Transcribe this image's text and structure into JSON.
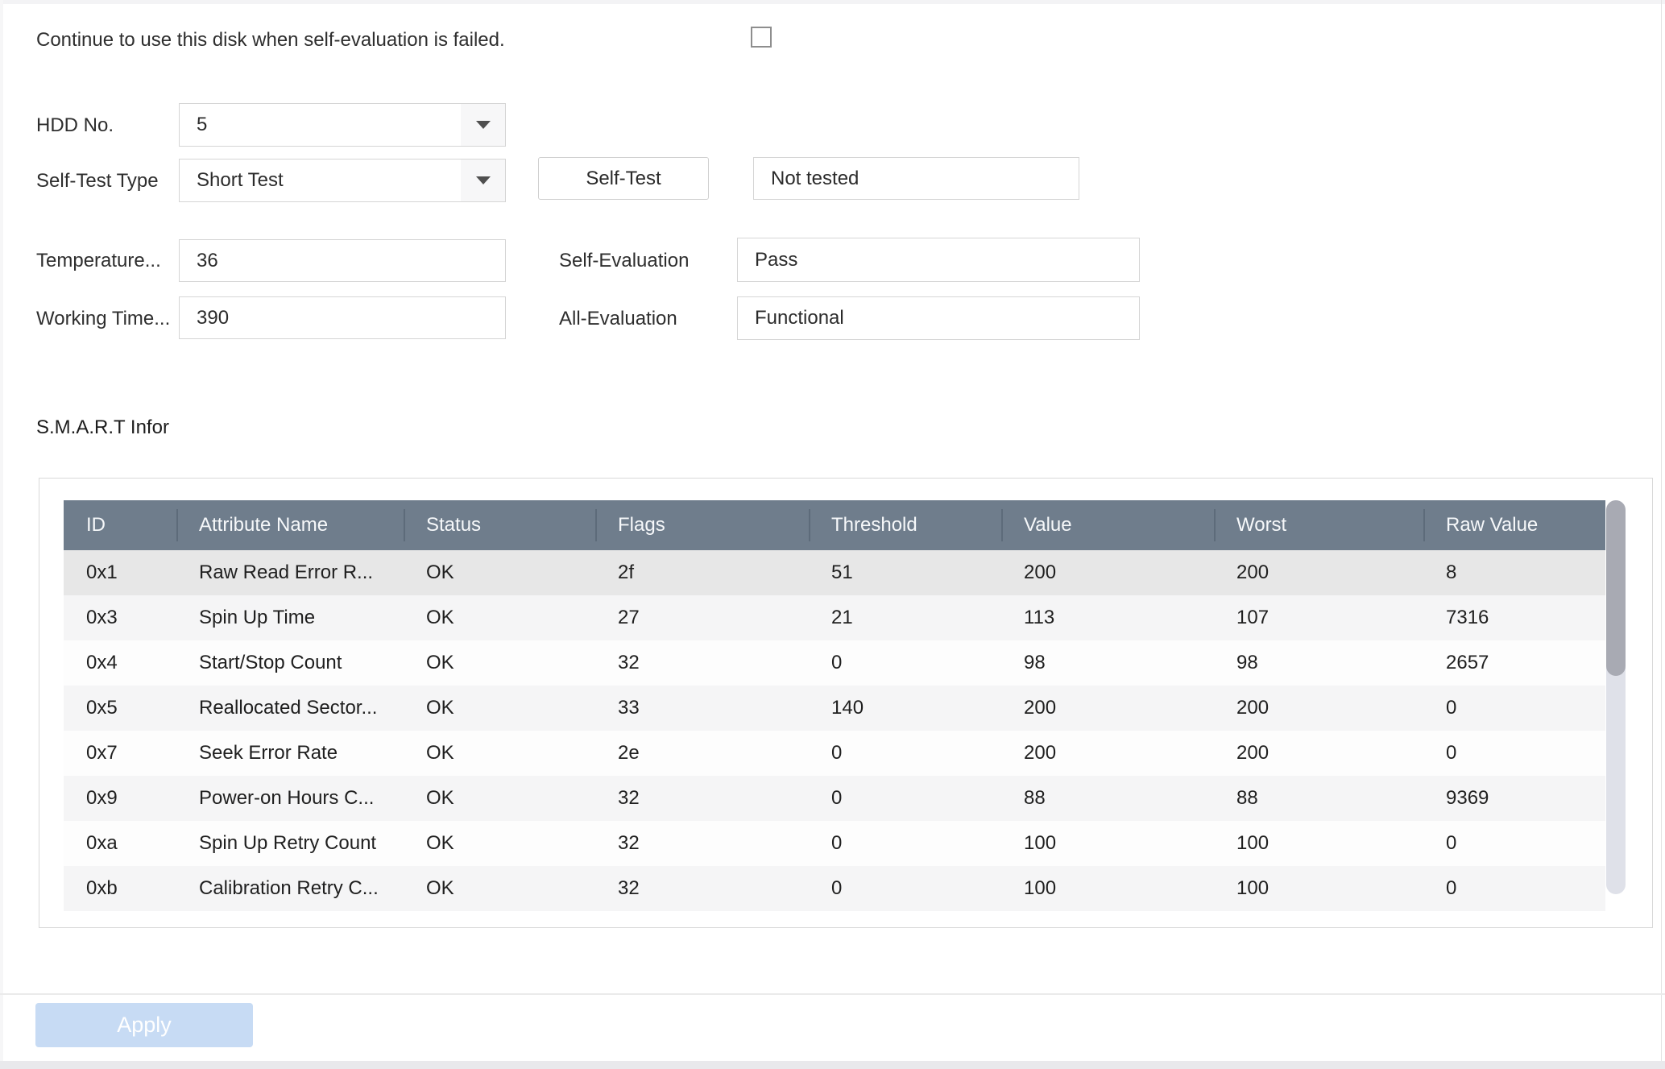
{
  "checkbox_row": {
    "label": "Continue to use this disk when self-evaluation is failed.",
    "checked": false
  },
  "form": {
    "hdd_no": {
      "label": "HDD No.",
      "value": "5"
    },
    "self_test_type": {
      "label": "Self-Test Type",
      "value": "Short Test"
    },
    "self_test": {
      "button_label": "Self-Test",
      "result": "Not tested"
    },
    "temperature": {
      "label": "Temperature...",
      "value": "36"
    },
    "working_time": {
      "label": "Working Time...",
      "value": "390"
    },
    "self_evaluation": {
      "label": "Self-Evaluation",
      "value": "Pass"
    },
    "all_evaluation": {
      "label": "All-Evaluation",
      "value": "Functional"
    }
  },
  "smart": {
    "title": "S.M.A.R.T Infor",
    "columns": [
      "ID",
      "Attribute Name",
      "Status",
      "Flags",
      "Threshold",
      "Value",
      "Worst",
      "Raw Value"
    ],
    "rows": [
      [
        "0x1",
        "Raw Read Error R...",
        "OK",
        "2f",
        "51",
        "200",
        "200",
        "8"
      ],
      [
        "0x3",
        "Spin Up Time",
        "OK",
        "27",
        "21",
        "113",
        "107",
        "7316"
      ],
      [
        "0x4",
        "Start/Stop Count",
        "OK",
        "32",
        "0",
        "98",
        "98",
        "2657"
      ],
      [
        "0x5",
        "Reallocated Sector...",
        "OK",
        "33",
        "140",
        "200",
        "200",
        "0"
      ],
      [
        "0x7",
        "Seek Error Rate",
        "OK",
        "2e",
        "0",
        "200",
        "200",
        "0"
      ],
      [
        "0x9",
        "Power-on Hours C...",
        "OK",
        "32",
        "0",
        "88",
        "88",
        "9369"
      ],
      [
        "0xa",
        "Spin Up Retry Count",
        "OK",
        "32",
        "0",
        "100",
        "100",
        "0"
      ],
      [
        "0xb",
        "Calibration Retry C...",
        "OK",
        "32",
        "0",
        "100",
        "100",
        "0"
      ]
    ],
    "selected_row_index": 0
  },
  "footer": {
    "apply_label": "Apply"
  },
  "colors": {
    "table_header_bg": "#6f7d8c",
    "table_header_separator": "#5d6b7a",
    "selected_row_bg": "#e7e7e7",
    "stripe_row_bg": "#f5f5f6",
    "apply_bg": "#c7dbf4",
    "apply_text": "#ffffff"
  }
}
